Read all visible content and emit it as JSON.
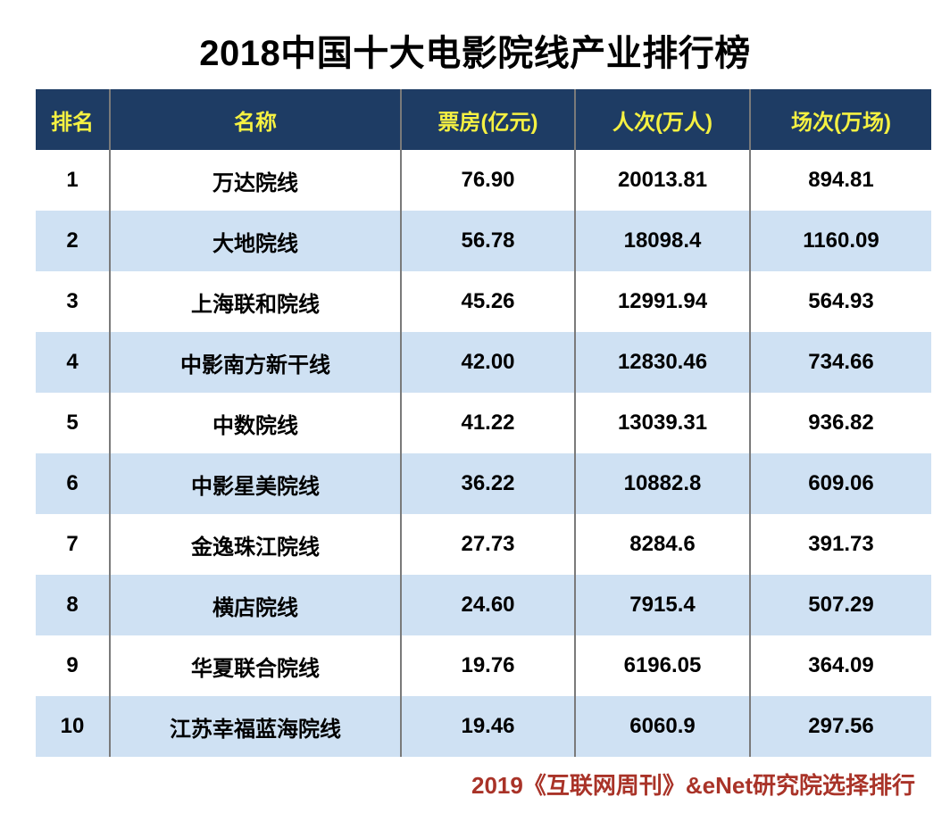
{
  "chart_data": {
    "type": "table",
    "title": "2018中国十大电影院线产业排行榜",
    "columns": [
      "排名",
      "名称",
      "票房(亿元)",
      "人次(万人)",
      "场次(万场)"
    ],
    "rows": [
      {
        "rank": "1",
        "name": "万达院线",
        "box_office": "76.90",
        "admissions": "20013.81",
        "screenings": "894.81"
      },
      {
        "rank": "2",
        "name": "大地院线",
        "box_office": "56.78",
        "admissions": "18098.4",
        "screenings": "1160.09"
      },
      {
        "rank": "3",
        "name": "上海联和院线",
        "box_office": "45.26",
        "admissions": "12991.94",
        "screenings": "564.93"
      },
      {
        "rank": "4",
        "name": "中影南方新干线",
        "box_office": "42.00",
        "admissions": "12830.46",
        "screenings": "734.66"
      },
      {
        "rank": "5",
        "name": "中数院线",
        "box_office": "41.22",
        "admissions": "13039.31",
        "screenings": "936.82"
      },
      {
        "rank": "6",
        "name": "中影星美院线",
        "box_office": "36.22",
        "admissions": "10882.8",
        "screenings": "609.06"
      },
      {
        "rank": "7",
        "name": "金逸珠江院线",
        "box_office": "27.73",
        "admissions": "8284.6",
        "screenings": "391.73"
      },
      {
        "rank": "8",
        "name": "横店院线",
        "box_office": "24.60",
        "admissions": "7915.4",
        "screenings": "507.29"
      },
      {
        "rank": "9",
        "name": "华夏联合院线",
        "box_office": "19.76",
        "admissions": "6196.05",
        "screenings": "364.09"
      },
      {
        "rank": "10",
        "name": "江苏幸福蓝海院线",
        "box_office": "19.46",
        "admissions": "6060.9",
        "screenings": "297.56"
      }
    ],
    "source_note": "2019《互联网周刊》&eNet研究院选择排行",
    "layout": {
      "grid": "vertical-separators-only",
      "legend": "none",
      "row_striping": "even-rows-blue"
    }
  },
  "colors": {
    "header_background": "#1E3C64",
    "header_text": "#F5F142",
    "alt_row_background": "#CFE1F3",
    "grid_line": "#7A7A7A",
    "body_text": "#000000",
    "source_text": "#A93328",
    "page_background": "#FFFFFF"
  }
}
